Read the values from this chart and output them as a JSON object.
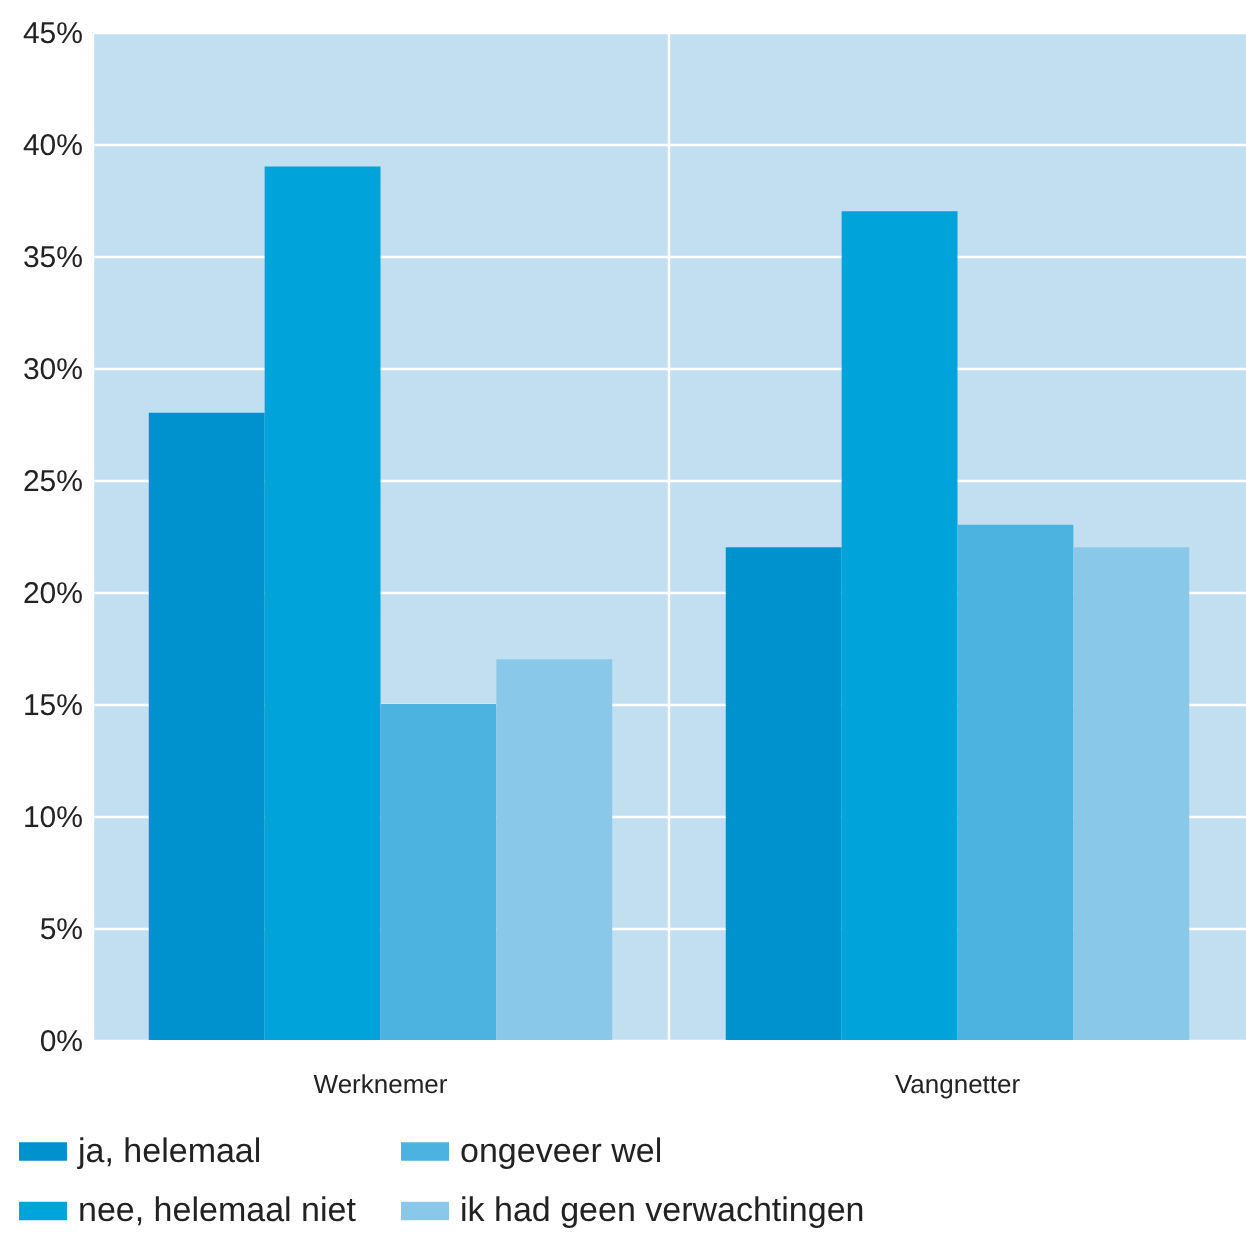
{
  "chart_data": {
    "type": "bar",
    "categories": [
      "Werknemer",
      "Vangnetter"
    ],
    "series": [
      {
        "name": "ja, helemaal",
        "color": "#0091cf",
        "values": [
          28,
          22
        ]
      },
      {
        "name": "nee, helemaal niet",
        "color": "#00a3da",
        "values": [
          39,
          37
        ]
      },
      {
        "name": "ongeveer wel",
        "color": "#4cb2e0",
        "values": [
          15,
          23
        ]
      },
      {
        "name": "ik had geen verwachtingen",
        "color": "#8ac8ea",
        "values": [
          17,
          22
        ]
      }
    ],
    "ylim": [
      0,
      45
    ],
    "yticks": [
      {
        "value": 0,
        "label": "0%"
      },
      {
        "value": 5,
        "label": "5%"
      },
      {
        "value": 10,
        "label": "10%"
      },
      {
        "value": 15,
        "label": "15%"
      },
      {
        "value": 20,
        "label": "20%"
      },
      {
        "value": 25,
        "label": "25%"
      },
      {
        "value": 30,
        "label": "30%"
      },
      {
        "value": 35,
        "label": "35%"
      },
      {
        "value": 40,
        "label": "40%"
      },
      {
        "value": 45,
        "label": "45%"
      }
    ],
    "grid": true,
    "legend": "bottom"
  }
}
